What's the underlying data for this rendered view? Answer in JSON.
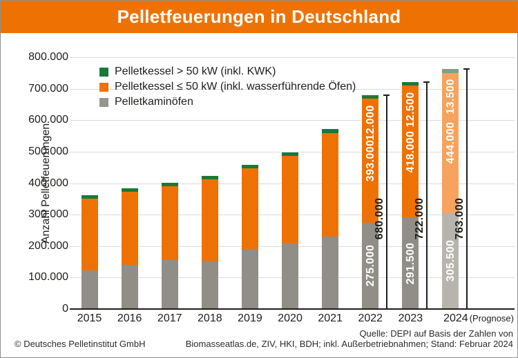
{
  "header": {
    "title": "Pelletfeuerungen in Deutschland",
    "background_color": "#ee7203"
  },
  "y_axis": {
    "label": "Anzahl Pelletfeuerungen",
    "ticks": [
      "800.000",
      "700.000",
      "600.000",
      "500.000",
      "400.000",
      "300.000",
      "200.000",
      "100.000",
      "0"
    ]
  },
  "legend": {
    "items": [
      {
        "label": "Pelletkessel > 50 kW (inkl. KWK)",
        "color": "#177a3b"
      },
      {
        "label": "Pelletkessel ≤ 50 kW (inkl. wasserführende Öfen)",
        "color": "#ee7203"
      },
      {
        "label": "Pelletkaminöfen",
        "color": "#97958d"
      }
    ]
  },
  "chart_data": {
    "type": "bar",
    "stacked": true,
    "title": "Pelletfeuerungen in Deutschland",
    "ylabel": "Anzahl Pelletfeuerungen",
    "ylim": [
      0,
      800000
    ],
    "y_tick_interval": 100000,
    "grid": true,
    "legend_position": "top-left",
    "categories": [
      "2015",
      "2016",
      "2017",
      "2018",
      "2019",
      "2020",
      "2021",
      "2022",
      "2023",
      "2024"
    ],
    "forecast_index": 9,
    "forecast_note": "(Prognose)",
    "series": [
      {
        "name": "Pelletkaminöfen",
        "color": "#908e86",
        "forecast_color": "#b7b4ad",
        "values": [
          123000,
          141000,
          155000,
          151000,
          190000,
          208500,
          230500,
          275000,
          291500,
          305500
        ]
      },
      {
        "name": "Pelletkessel ≤ 50 kW (inkl. wasserführende Öfen)",
        "color": "#ee7203",
        "forecast_color": "#f6a35e",
        "values": [
          228500,
          232000,
          235500,
          262000,
          257500,
          277000,
          329000,
          393000,
          418000,
          444000
        ]
      },
      {
        "name": "Pelletkessel > 50 kW (inkl. KWK)",
        "color": "#177a3b",
        "forecast_color": "#7fa08c",
        "values": [
          9500,
          10000,
          10500,
          11000,
          11500,
          11500,
          11500,
          12000,
          12500,
          13500
        ]
      }
    ],
    "totals": [
      361000,
      383000,
      401000,
      424000,
      459000,
      497000,
      571000,
      680000,
      722000,
      763000
    ],
    "segment_labels": [
      null,
      null,
      null,
      null,
      null,
      null,
      null,
      [
        "275.000",
        "393.000",
        "12.000"
      ],
      [
        "291.500",
        "418.000",
        "12.500"
      ],
      [
        "305.500",
        "444.000",
        "13.500"
      ]
    ],
    "total_labels": [
      null,
      null,
      null,
      null,
      null,
      null,
      null,
      "680.000",
      "722.000",
      "763.000"
    ]
  },
  "footer": {
    "copyright": "© Deutsches Pelletinstitut GmbH",
    "source_line1": "Quelle: DEPI auf Basis der Zahlen von",
    "source_line2": "Biomasseatlas.de, ZIV, HKI, BDH; inkl. Außerbetriebnahmen; Stand: Februar 2024"
  }
}
